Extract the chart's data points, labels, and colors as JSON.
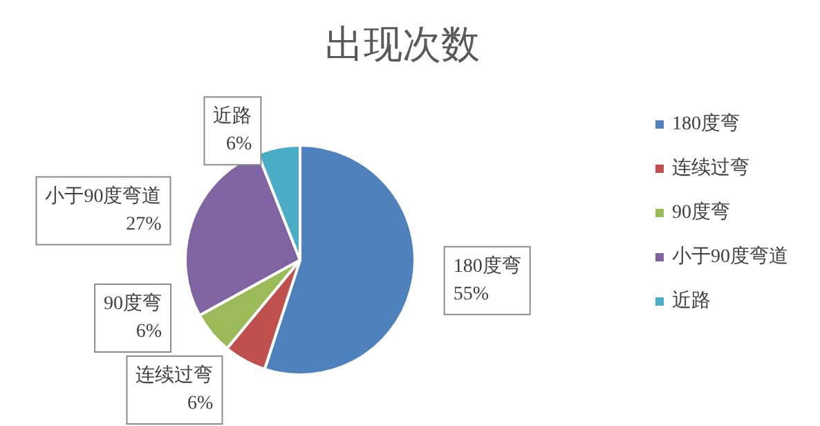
{
  "chart_data": {
    "type": "pie",
    "title": "出现次数",
    "categories": [
      "180度弯",
      "连续过弯",
      "90度弯",
      "小于90度弯道",
      "近路"
    ],
    "values": [
      55,
      6,
      6,
      27,
      6
    ],
    "value_labels": [
      "55%",
      "6%",
      "6%",
      "27%",
      "6%"
    ],
    "colors": [
      "#4f81bd",
      "#c0504d",
      "#9bbb59",
      "#8064a2",
      "#4bacc6"
    ],
    "legend": "right"
  }
}
